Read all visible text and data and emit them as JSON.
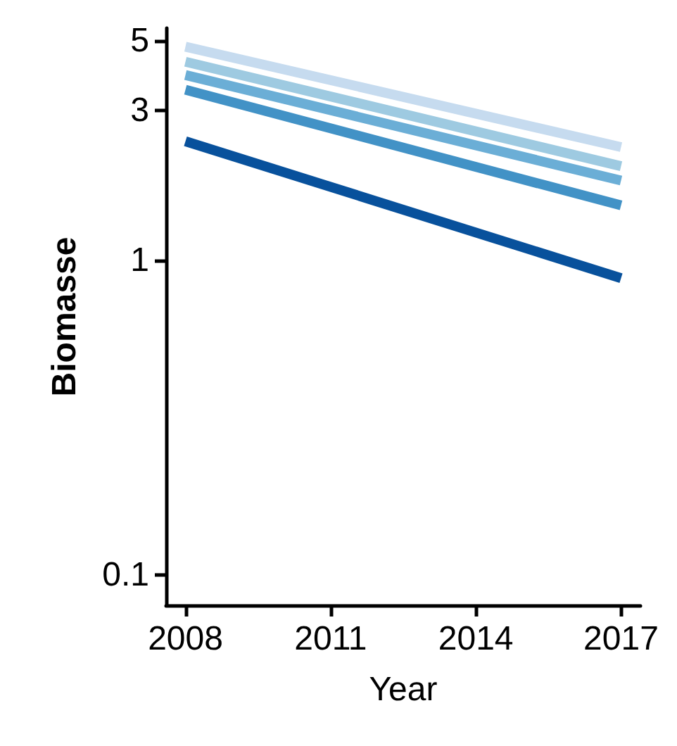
{
  "chart_data": {
    "type": "line",
    "xlabel": "Year",
    "ylabel": "Biomasse",
    "log": "y",
    "grid": false,
    "marker": "none",
    "line_style": "solid",
    "xlim": [
      2007.6,
      2017.4
    ],
    "xticks": [
      2008,
      2011,
      2014,
      2017
    ],
    "ylim": [
      0.08,
      5.5
    ],
    "yticks": [
      0.1,
      1,
      3,
      5
    ],
    "x": [
      2008,
      2017
    ],
    "series": [
      {
        "color": "#c6dbef",
        "values": [
          4.8,
          2.3
        ]
      },
      {
        "color": "#9ecae1",
        "values": [
          4.3,
          2.0
        ]
      },
      {
        "color": "#6baed6",
        "values": [
          3.9,
          1.8
        ]
      },
      {
        "color": "#4292c6",
        "values": [
          3.5,
          1.5
        ]
      },
      {
        "color": "#08519c",
        "values": [
          2.4,
          0.88
        ]
      }
    ]
  }
}
